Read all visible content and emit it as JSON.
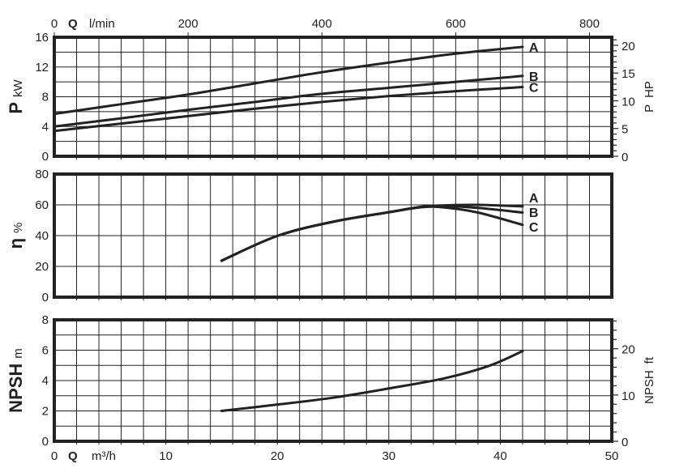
{
  "chart_data": [
    {
      "type": "line",
      "panel": "power",
      "ylabel_symbol": "P",
      "ylabel_unit": "kW",
      "ylim": [
        0,
        16
      ],
      "yticks": [
        0,
        4,
        8,
        12,
        16
      ],
      "right_axis": {
        "label_symbol": "P",
        "label_unit": "HP",
        "ylim_hp": [
          0,
          20
        ],
        "ticks": [
          0,
          5,
          10,
          15,
          20
        ]
      },
      "top_axis": {
        "symbol": "Q",
        "unit": "l/min",
        "ticks": [
          0,
          200,
          400,
          600,
          800
        ]
      },
      "xlim": [
        0,
        50
      ],
      "grid": true,
      "x": [
        0,
        6,
        12,
        18,
        24,
        30,
        36,
        42
      ],
      "series": [
        {
          "name": "A",
          "values": [
            5.7,
            7.0,
            8.3,
            9.8,
            11.3,
            12.6,
            13.8,
            14.7
          ]
        },
        {
          "name": "B",
          "values": [
            4.0,
            5.1,
            6.25,
            7.3,
            8.4,
            9.2,
            10.0,
            10.8
          ]
        },
        {
          "name": "C",
          "values": [
            3.4,
            4.4,
            5.4,
            6.4,
            7.3,
            8.1,
            8.75,
            9.3
          ]
        }
      ]
    },
    {
      "type": "line",
      "panel": "efficiency",
      "ylabel_symbol": "η",
      "ylabel_unit": "%",
      "ylim": [
        0,
        80
      ],
      "yticks": [
        0,
        20,
        40,
        60,
        80
      ],
      "xlim": [
        0,
        50
      ],
      "grid": true,
      "x": [
        15,
        20,
        25,
        30,
        33,
        35,
        38,
        42
      ],
      "series": [
        {
          "name": "A",
          "values": [
            23.7,
            39.8,
            49,
            55.2,
            58.8,
            59.7,
            60,
            59
          ]
        },
        {
          "name": "B",
          "values": [
            23.7,
            39.8,
            49,
            55.2,
            58.8,
            59.3,
            58,
            55
          ]
        },
        {
          "name": "C",
          "values": [
            23.7,
            39.8,
            49,
            55.2,
            58.5,
            58.3,
            55,
            47
          ]
        }
      ]
    },
    {
      "type": "line",
      "panel": "npsh",
      "ylabel_symbol": "NPSH",
      "ylabel_unit": "m",
      "ylim": [
        0,
        8
      ],
      "yticks": [
        0,
        2,
        4,
        6,
        8
      ],
      "right_axis": {
        "label_symbol": "NPSH",
        "label_unit": "ft",
        "ticks": [
          0,
          10,
          20
        ]
      },
      "bottom_axis": {
        "symbol": "Q",
        "unit": "m³/h",
        "ticks": [
          0,
          10,
          20,
          30,
          40,
          50
        ]
      },
      "xlim": [
        0,
        50
      ],
      "grid": true,
      "x": [
        15,
        20,
        25,
        30,
        35,
        39,
        42
      ],
      "series": [
        {
          "values": [
            2.0,
            2.42,
            2.87,
            3.48,
            4.15,
            4.97,
            5.94
          ]
        }
      ]
    }
  ]
}
